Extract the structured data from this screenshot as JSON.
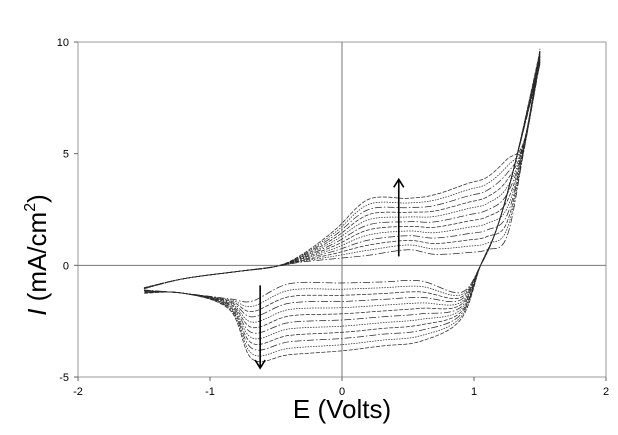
{
  "chart_data": {
    "type": "line",
    "title": "",
    "xlabel": "E (Volts)",
    "ylabel_italic": "I",
    "ylabel_rest": " (mA/cm",
    "ylabel_sup": "2",
    "ylabel_close": ")",
    "xlim": [
      -2,
      2
    ],
    "ylim": [
      -5,
      10
    ],
    "x_ticks": [
      "-2",
      "-1",
      "0",
      "1",
      "2"
    ],
    "y_ticks": [
      "-5",
      "0",
      "5",
      "10"
    ],
    "x_tick_values": [
      -2,
      -1,
      0,
      1,
      2
    ],
    "y_tick_values": [
      -5,
      0,
      5,
      10
    ],
    "grid": false,
    "zero_lines": true,
    "cycles": 12,
    "upper_plateau_range": [
      0.6,
      3.85
    ],
    "lower_plateau_range": [
      -0.9,
      -4.35
    ],
    "anodic_peak": {
      "x": 0.5,
      "y_range": [
        0.7,
        3.0
      ]
    },
    "cathodic_peak": {
      "x": -0.68,
      "y_range": [
        -1.6,
        -4.2
      ]
    },
    "arrows": [
      {
        "direction": "up",
        "x": 0.43,
        "y_from": 0.4,
        "y_to": 3.85
      },
      {
        "direction": "down",
        "x": -0.62,
        "y_from": -0.9,
        "y_to": -4.6
      }
    ]
  }
}
